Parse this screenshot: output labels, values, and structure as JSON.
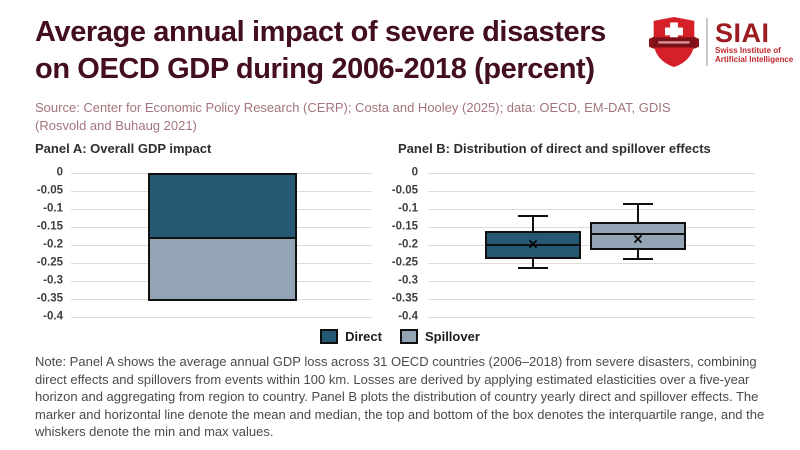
{
  "header": {
    "title_line1": "Average annual impact of severe disasters",
    "title_line2": "on OECD GDP during 2006-2018 (percent)",
    "source_line1": "Source: Center for Economic Policy Research (CERP); Costa and Hooley (2025); data: OECD, EM-DAT, GDIS",
    "source_line2": "(Rosvold and Buhaug 2021)"
  },
  "logo": {
    "acronym": "SIAI",
    "name_line1": "Swiss Institute of",
    "name_line2": "Artificial Intelligence",
    "shield_color": "#d5202a",
    "banner_color": "#7e1118",
    "text_red": "#9c1c22",
    "subtext_red": "#c1272d"
  },
  "chart_data": [
    {
      "type": "bar",
      "panel": "A",
      "title": "Panel A: Overall GDP impact",
      "stacked": true,
      "categories": [
        "Overall GDP impact"
      ],
      "series": [
        {
          "name": "Direct",
          "values": [
            -0.18
          ],
          "color": "#245873"
        },
        {
          "name": "Spillover",
          "values": [
            -0.175
          ],
          "color": "#93a4b4"
        }
      ],
      "total": -0.355,
      "ylim": [
        -0.4,
        0
      ],
      "ytick_labels": [
        "0",
        "-0.05",
        "-0.1",
        "-0.15",
        "-0.2",
        "-0.25",
        "-0.3",
        "-0.35",
        "-0.4"
      ],
      "grid": true,
      "legend_position": "bottom-center"
    },
    {
      "type": "boxplot",
      "panel": "B",
      "title": "Panel B: Distribution of direct and spillover effects",
      "ylim": [
        -0.4,
        0
      ],
      "ytick_labels": [
        "0",
        "-0.05",
        "-0.1",
        "-0.15",
        "-0.2",
        "-0.25",
        "-0.3",
        "-0.35",
        "-0.4"
      ],
      "grid": true,
      "series": [
        {
          "name": "Direct",
          "color": "#245873",
          "whisker_high": -0.12,
          "q3": -0.16,
          "median": -0.2,
          "mean": -0.2,
          "q1": -0.24,
          "whisker_low": -0.265
        },
        {
          "name": "Spillover",
          "color": "#93a4b4",
          "whisker_high": -0.085,
          "q3": -0.135,
          "median": -0.17,
          "mean": -0.185,
          "q1": -0.215,
          "whisker_low": -0.24
        }
      ],
      "mean_marker": "×"
    }
  ],
  "legend": {
    "items": [
      {
        "label": "Direct",
        "color": "#245873"
      },
      {
        "label": "Spillover",
        "color": "#93a4b4"
      }
    ]
  },
  "note": {
    "text": "Note: Panel A shows the average annual GDP loss across 31 OECD countries (2006–2018) from severe disasters, combining direct effects and spillovers from events within 100 km. Losses are derived by applying estimated elasticities over a five-year horizon and aggregating from region to country. Panel B plots the distribution of country yearly direct and spillover effects. The marker and horizontal line denote the mean and median, the top and bottom of the box denotes the interquartile range, and the whiskers denote the min and max values."
  },
  "colors": {
    "title": "#430d22",
    "source": "#a3747c",
    "direct": "#245873",
    "spillover": "#93a4b4",
    "gridline": "#dcdcdc",
    "mark_outline": "#101010",
    "note_text": "#4a4a4a"
  }
}
